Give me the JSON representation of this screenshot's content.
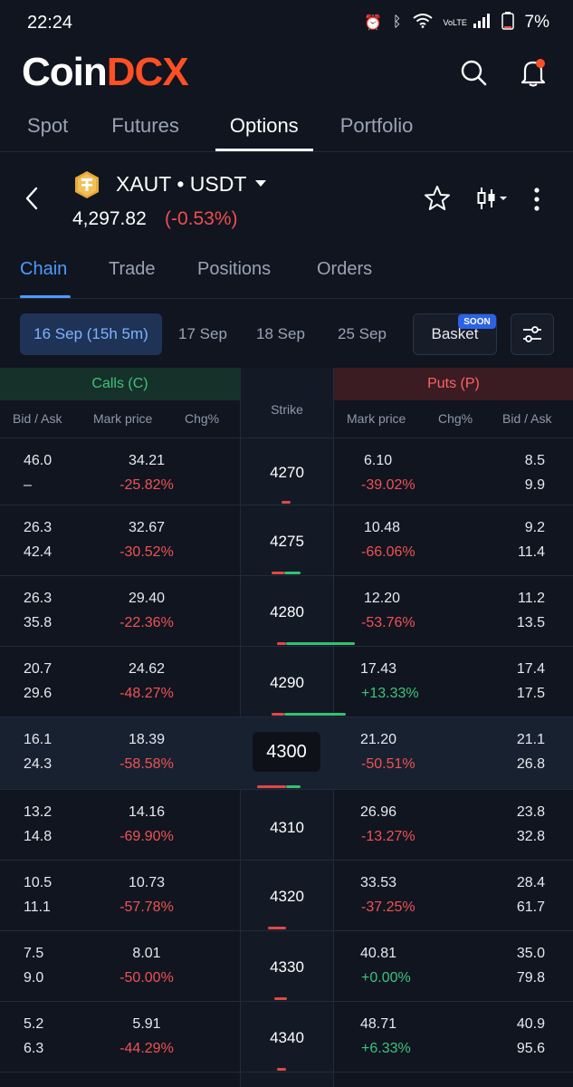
{
  "status": {
    "time": "22:24",
    "battery": "7%",
    "net": "VoLTE"
  },
  "brand": {
    "part1": "Coin",
    "part2": "DCX"
  },
  "main_tabs": [
    {
      "label": "Spot"
    },
    {
      "label": "Futures"
    },
    {
      "label": "Options"
    },
    {
      "label": "Portfolio"
    }
  ],
  "pair": {
    "name": "XAUT • USDT",
    "price": "4,297.82",
    "change": "(-0.53%)"
  },
  "sub_tabs": [
    {
      "label": "Chain"
    },
    {
      "label": "Trade"
    },
    {
      "label": "Positions"
    },
    {
      "label": "Orders"
    }
  ],
  "dates": [
    {
      "label": "16 Sep (15h 5m)"
    },
    {
      "label": "17 Sep"
    },
    {
      "label": "18 Sep"
    },
    {
      "label": "25 Sep"
    }
  ],
  "basket": {
    "label": "Basket",
    "badge": "SOON"
  },
  "chain_header": {
    "calls": "Calls (C)",
    "puts": "Puts (P)",
    "strike": "Strike",
    "bid_ask": "Bid / Ask",
    "mark_price": "Mark price",
    "chg": "Chg%"
  },
  "rows": [
    {
      "strike": "4270",
      "c_bid": "46.0",
      "c_ask": "–",
      "c_mark": "34.21",
      "c_chg": "-25.82%",
      "p_mark": "6.10",
      "p_chg": "-39.02%",
      "p_bid": "8.5",
      "p_ask": "9.9"
    },
    {
      "strike": "4275",
      "c_bid": "26.3",
      "c_ask": "42.4",
      "c_mark": "32.67",
      "c_chg": "-30.52%",
      "p_mark": "10.48",
      "p_chg": "-66.06%",
      "p_bid": "9.2",
      "p_ask": "11.4"
    },
    {
      "strike": "4280",
      "c_bid": "26.3",
      "c_ask": "35.8",
      "c_mark": "29.40",
      "c_chg": "-22.36%",
      "p_mark": "12.20",
      "p_chg": "-53.76%",
      "p_bid": "11.2",
      "p_ask": "13.5"
    },
    {
      "strike": "4290",
      "c_bid": "20.7",
      "c_ask": "29.6",
      "c_mark": "24.62",
      "c_chg": "-48.27%",
      "p_mark": "17.43",
      "p_chg": "+13.33%",
      "p_bid": "17.4",
      "p_ask": "17.5"
    },
    {
      "strike": "4300",
      "c_bid": "16.1",
      "c_ask": "24.3",
      "c_mark": "18.39",
      "c_chg": "-58.58%",
      "p_mark": "21.20",
      "p_chg": "-50.51%",
      "p_bid": "21.1",
      "p_ask": "26.8"
    },
    {
      "strike": "4310",
      "c_bid": "13.2",
      "c_ask": "14.8",
      "c_mark": "14.16",
      "c_chg": "-69.90%",
      "p_mark": "26.96",
      "p_chg": "-13.27%",
      "p_bid": "23.8",
      "p_ask": "32.8"
    },
    {
      "strike": "4320",
      "c_bid": "10.5",
      "c_ask": "11.1",
      "c_mark": "10.73",
      "c_chg": "-57.78%",
      "p_mark": "33.53",
      "p_chg": "-37.25%",
      "p_bid": "28.4",
      "p_ask": "61.7"
    },
    {
      "strike": "4330",
      "c_bid": "7.5",
      "c_ask": "9.0",
      "c_mark": "8.01",
      "c_chg": "-50.00%",
      "p_mark": "40.81",
      "p_chg": "+0.00%",
      "p_bid": "35.0",
      "p_ask": "79.8"
    },
    {
      "strike": "4340",
      "c_bid": "5.2",
      "c_ask": "6.3",
      "c_mark": "5.91",
      "c_chg": "-44.29%",
      "p_mark": "48.71",
      "p_chg": "+6.33%",
      "p_bid": "40.9",
      "p_ask": "95.6"
    }
  ]
}
